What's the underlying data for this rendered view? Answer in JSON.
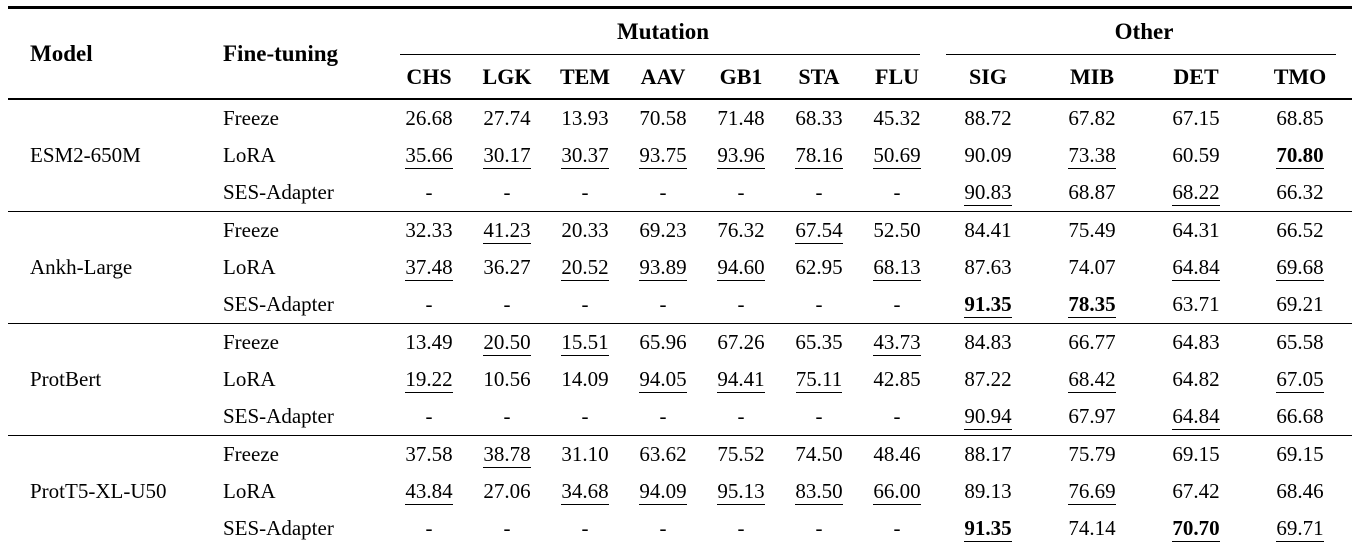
{
  "table": {
    "header": {
      "model": "Model",
      "fine_tuning": "Fine-tuning",
      "mutation_group": "Mutation",
      "other_group": "Other",
      "mutation_columns": [
        "CHS",
        "LGK",
        "TEM",
        "AAV",
        "GB1",
        "STA",
        "FLU"
      ],
      "other_columns": [
        "SIG",
        "MIB",
        "DET",
        "TMO"
      ]
    },
    "emphasis_codes": {
      "": "plain",
      "u": "underline",
      "bu": "bold-underline"
    },
    "groups": [
      {
        "model": "ESM2-650M",
        "rows": [
          {
            "method": "Freeze",
            "values": [
              "26.68",
              "27.74",
              "13.93",
              "70.58",
              "71.48",
              "68.33",
              "45.32",
              "88.72",
              "67.82",
              "67.15",
              "68.85"
            ],
            "styles": [
              "",
              "",
              "",
              "",
              "",
              "",
              "",
              "",
              "",
              "",
              ""
            ]
          },
          {
            "method": "LoRA",
            "values": [
              "35.66",
              "30.17",
              "30.37",
              "93.75",
              "93.96",
              "78.16",
              "50.69",
              "90.09",
              "73.38",
              "60.59",
              "70.80"
            ],
            "styles": [
              "u",
              "u",
              "u",
              "u",
              "u",
              "u",
              "u",
              "",
              "u",
              "",
              "bu"
            ]
          },
          {
            "method": "SES-Adapter",
            "values": [
              "-",
              "-",
              "-",
              "-",
              "-",
              "-",
              "-",
              "90.83",
              "68.87",
              "68.22",
              "66.32"
            ],
            "styles": [
              "",
              "",
              "",
              "",
              "",
              "",
              "",
              "u",
              "",
              "u",
              ""
            ]
          }
        ]
      },
      {
        "model": "Ankh-Large",
        "rows": [
          {
            "method": "Freeze",
            "values": [
              "32.33",
              "41.23",
              "20.33",
              "69.23",
              "76.32",
              "67.54",
              "52.50",
              "84.41",
              "75.49",
              "64.31",
              "66.52"
            ],
            "styles": [
              "",
              "u",
              "",
              "",
              "",
              "u",
              "",
              "",
              "",
              "",
              ""
            ]
          },
          {
            "method": "LoRA",
            "values": [
              "37.48",
              "36.27",
              "20.52",
              "93.89",
              "94.60",
              "62.95",
              "68.13",
              "87.63",
              "74.07",
              "64.84",
              "69.68"
            ],
            "styles": [
              "u",
              "",
              "u",
              "u",
              "u",
              "",
              "u",
              "",
              "",
              "u",
              "u"
            ]
          },
          {
            "method": "SES-Adapter",
            "values": [
              "-",
              "-",
              "-",
              "-",
              "-",
              "-",
              "-",
              "91.35",
              "78.35",
              "63.71",
              "69.21"
            ],
            "styles": [
              "",
              "",
              "",
              "",
              "",
              "",
              "",
              "bu",
              "bu",
              "",
              ""
            ]
          }
        ]
      },
      {
        "model": "ProtBert",
        "rows": [
          {
            "method": "Freeze",
            "values": [
              "13.49",
              "20.50",
              "15.51",
              "65.96",
              "67.26",
              "65.35",
              "43.73",
              "84.83",
              "66.77",
              "64.83",
              "65.58"
            ],
            "styles": [
              "",
              "u",
              "u",
              "",
              "",
              "",
              "u",
              "",
              "",
              "",
              ""
            ]
          },
          {
            "method": "LoRA",
            "values": [
              "19.22",
              "10.56",
              "14.09",
              "94.05",
              "94.41",
              "75.11",
              "42.85",
              "87.22",
              "68.42",
              "64.82",
              "67.05"
            ],
            "styles": [
              "u",
              "",
              "",
              "u",
              "u",
              "u",
              "",
              "",
              "u",
              "",
              "u"
            ]
          },
          {
            "method": "SES-Adapter",
            "values": [
              "-",
              "-",
              "-",
              "-",
              "-",
              "-",
              "-",
              "90.94",
              "67.97",
              "64.84",
              "66.68"
            ],
            "styles": [
              "",
              "",
              "",
              "",
              "",
              "",
              "",
              "u",
              "",
              "u",
              ""
            ]
          }
        ]
      },
      {
        "model": "ProtT5-XL-U50",
        "rows": [
          {
            "method": "Freeze",
            "values": [
              "37.58",
              "38.78",
              "31.10",
              "63.62",
              "75.52",
              "74.50",
              "48.46",
              "88.17",
              "75.79",
              "69.15",
              "69.15"
            ],
            "styles": [
              "",
              "u",
              "",
              "",
              "",
              "",
              "",
              "",
              "",
              "",
              ""
            ]
          },
          {
            "method": "LoRA",
            "values": [
              "43.84",
              "27.06",
              "34.68",
              "94.09",
              "95.13",
              "83.50",
              "66.00",
              "89.13",
              "76.69",
              "67.42",
              "68.46"
            ],
            "styles": [
              "u",
              "",
              "u",
              "u",
              "u",
              "u",
              "u",
              "",
              "u",
              "",
              ""
            ]
          },
          {
            "method": "SES-Adapter",
            "values": [
              "-",
              "-",
              "-",
              "-",
              "-",
              "-",
              "-",
              "91.35",
              "74.14",
              "70.70",
              "69.71"
            ],
            "styles": [
              "",
              "",
              "",
              "",
              "",
              "",
              "",
              "bu",
              "",
              "bu",
              "u"
            ]
          }
        ]
      }
    ]
  }
}
